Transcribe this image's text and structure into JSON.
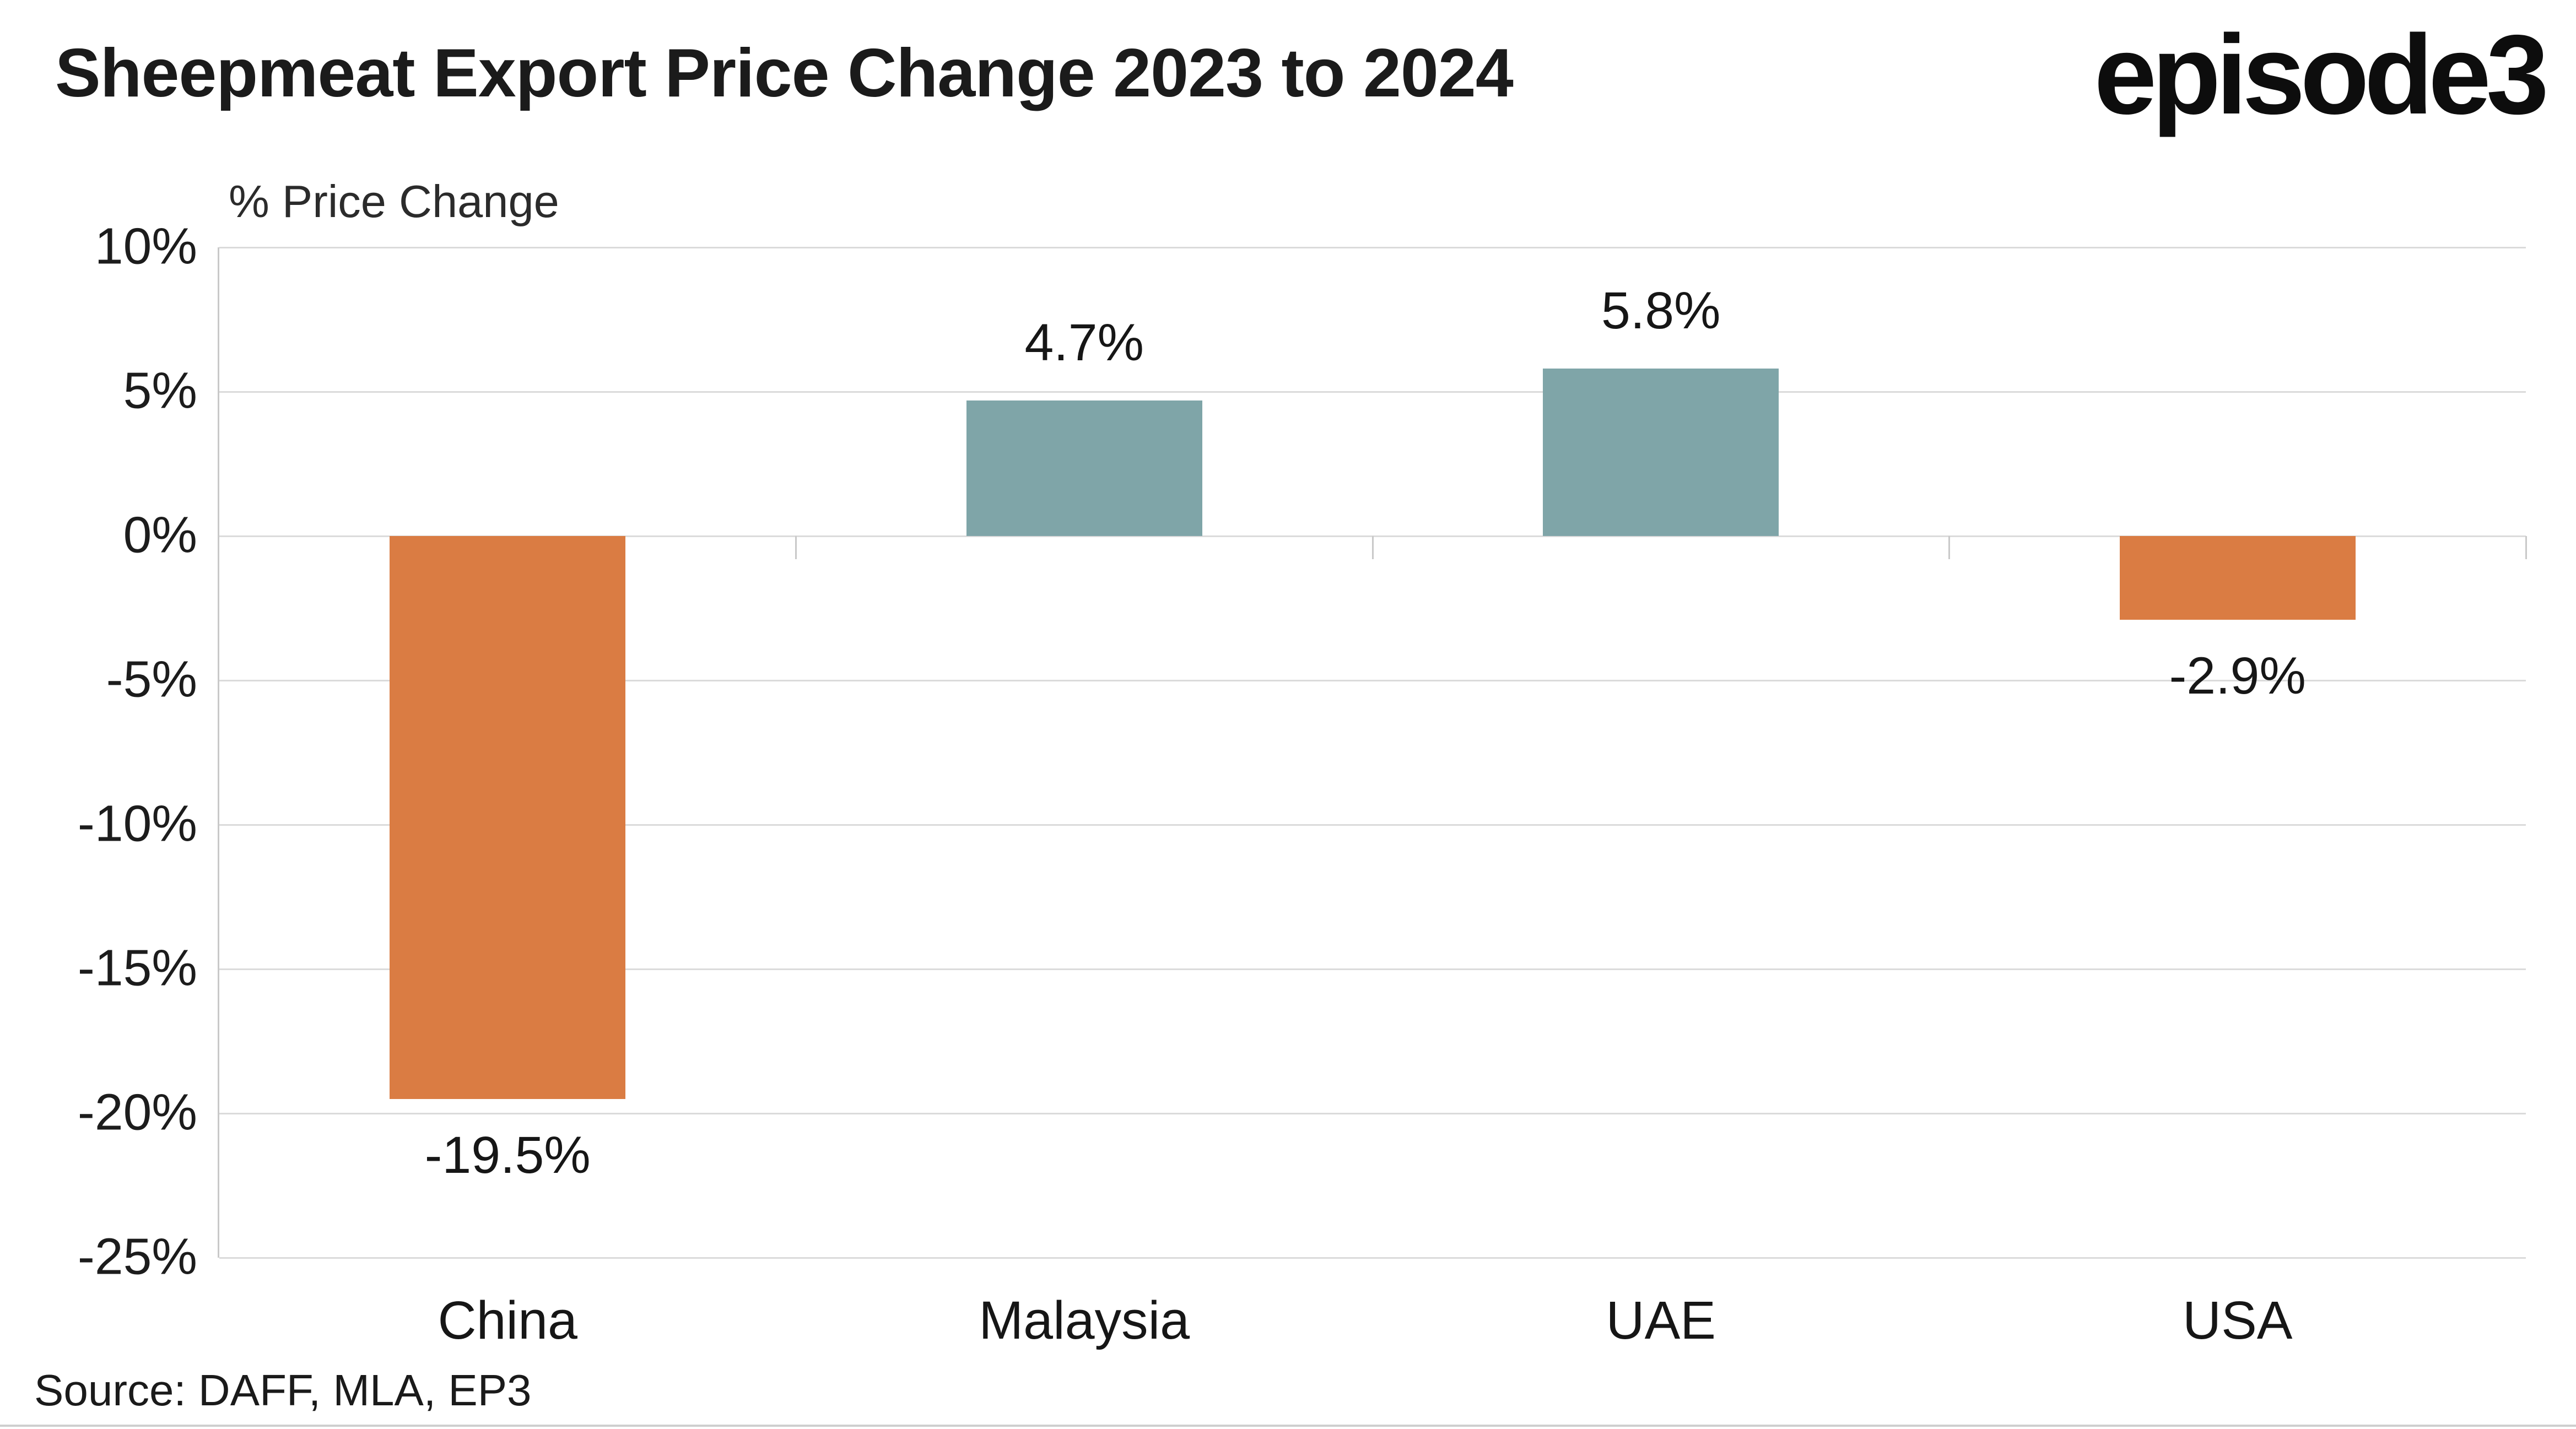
{
  "branding": {
    "logo_text": "episode3"
  },
  "footer": {
    "source": "Source: DAFF, MLA, EP3"
  },
  "chart_data": {
    "type": "bar",
    "title": "Sheepmeat Export Price Change 2023 to 2024",
    "ylabel": "% Price Change",
    "categories": [
      "China",
      "Malaysia",
      "UAE",
      "USA"
    ],
    "values": [
      -19.5,
      4.7,
      5.8,
      -2.9
    ],
    "value_labels": [
      "-19.5%",
      "4.7%",
      "5.8%",
      "-2.9%"
    ],
    "bar_colors": [
      "#DA7C43",
      "#7FA5A8",
      "#7FA5A8",
      "#DA7C43"
    ],
    "positive_color": "#7FA5A8",
    "negative_color": "#DA7C43",
    "ylim": [
      -25,
      10
    ],
    "yticks": [
      {
        "value": 10,
        "label": "10%"
      },
      {
        "value": 5,
        "label": "5%"
      },
      {
        "value": 0,
        "label": "0%"
      },
      {
        "value": -5,
        "label": "-5%"
      },
      {
        "value": -10,
        "label": "-10%"
      },
      {
        "value": -15,
        "label": "-15%"
      },
      {
        "value": -20,
        "label": "-20%"
      },
      {
        "value": -25,
        "label": "-25%"
      }
    ],
    "grid": "horizontal",
    "legend": "none"
  }
}
